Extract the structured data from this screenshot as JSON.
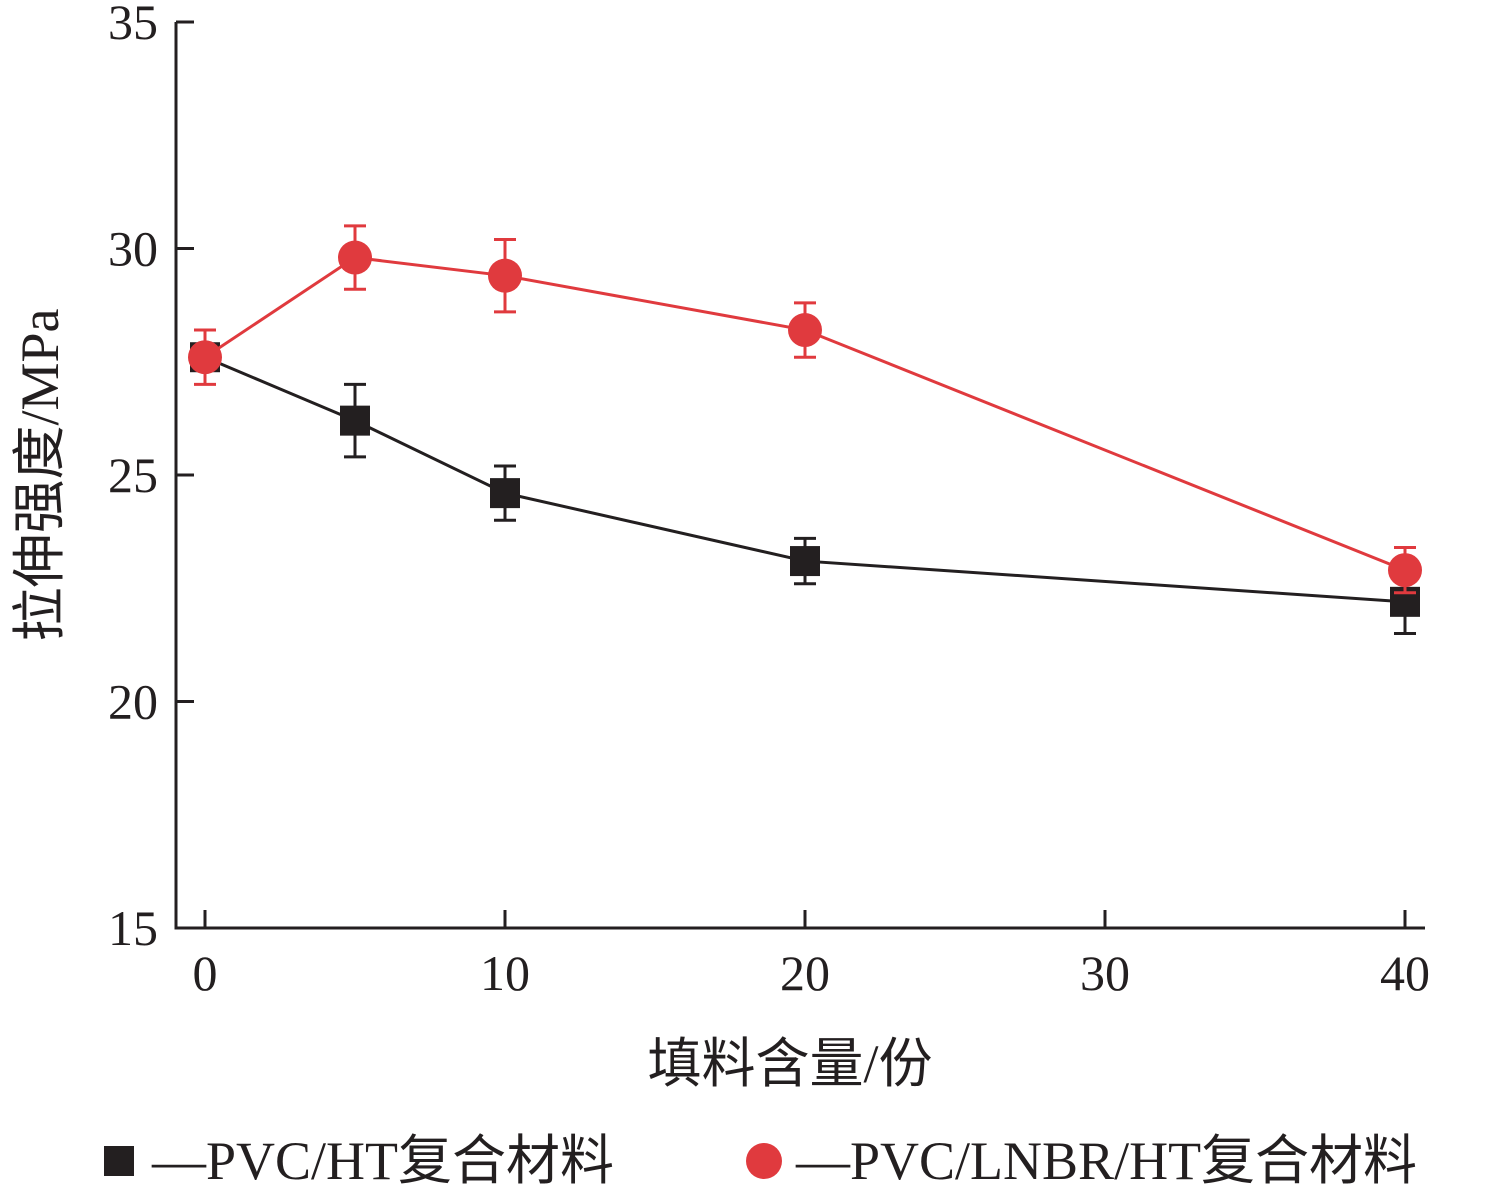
{
  "chart_data": {
    "type": "line",
    "xlabel": "填料含量/份",
    "ylabel": "拉伸强度/MPa",
    "xlim": [
      -1,
      41
    ],
    "ylim": [
      15,
      35
    ],
    "xticks": [
      0,
      10,
      20,
      30,
      40
    ],
    "yticks": [
      15,
      20,
      25,
      30,
      35
    ],
    "grid": false,
    "legend_position": "bottom",
    "series": [
      {
        "name": "—PVC/HT复合材料",
        "marker": "square",
        "color": "#231f20",
        "x": [
          0,
          5,
          10,
          20,
          40
        ],
        "y": [
          27.6,
          26.2,
          24.6,
          23.1,
          22.2
        ],
        "error": [
          0.2,
          0.8,
          0.6,
          0.5,
          0.7
        ]
      },
      {
        "name": "—PVC/LNBR/HT复合材料",
        "marker": "circle",
        "color": "#e03a3e",
        "x": [
          0,
          5,
          10,
          20,
          40
        ],
        "y": [
          27.6,
          29.8,
          29.4,
          28.2,
          22.9
        ],
        "error": [
          0.6,
          0.7,
          0.8,
          0.6,
          0.5
        ]
      }
    ]
  }
}
